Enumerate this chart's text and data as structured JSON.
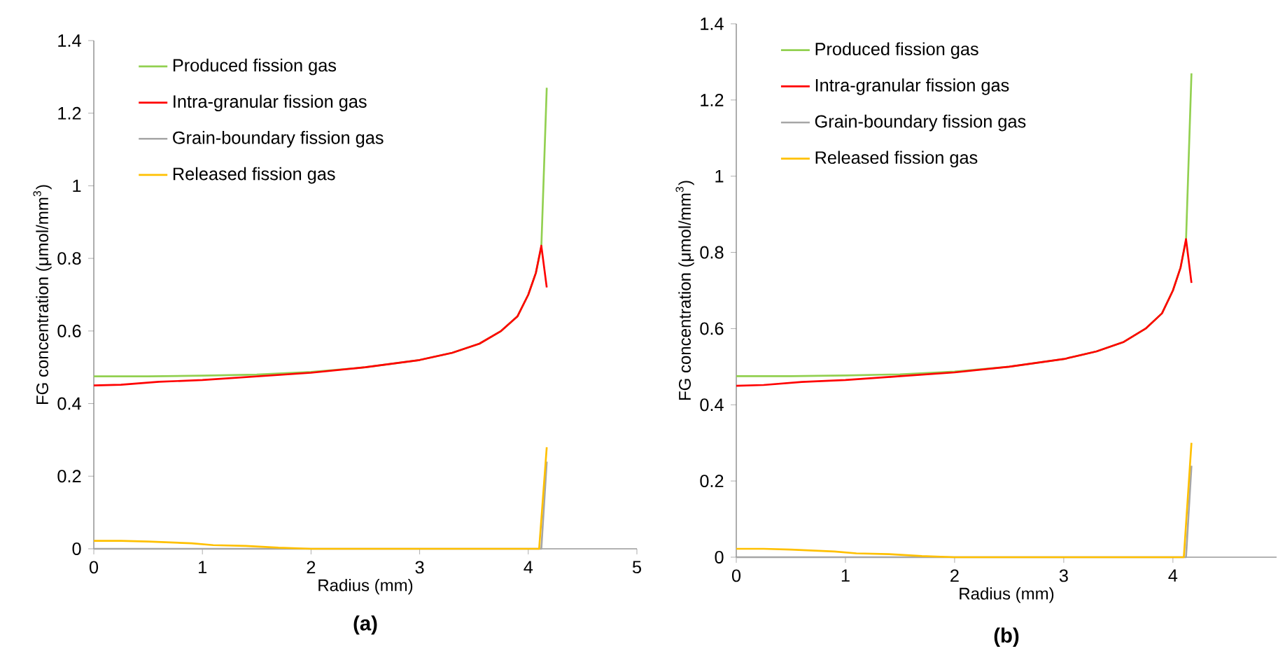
{
  "chart_data": [
    {
      "type": "line",
      "xlabel": "Radius (mm)",
      "ylabel": "FG concentration (μmol/mm$^{3}$)",
      "annotations": [
        "(a)"
      ],
      "legend": "top left",
      "xlim": [
        0,
        5
      ],
      "xticks": [
        0,
        1,
        2,
        3,
        4,
        5
      ],
      "ylim": [
        0,
        1.4
      ],
      "yticks": [
        0,
        0.2,
        0.4,
        0.6,
        0.8,
        1,
        1.2,
        1.4
      ],
      "series": [
        {
          "name": "Produced fission gas",
          "color": "#92d050",
          "x": [
            0,
            0.5,
            1,
            1.5,
            2,
            2.5,
            3,
            3.3,
            3.55,
            3.75,
            3.9,
            4.0,
            4.07,
            4.12,
            4.17
          ],
          "values": [
            0.475,
            0.475,
            0.477,
            0.48,
            0.487,
            0.5,
            0.52,
            0.54,
            0.565,
            0.6,
            0.64,
            0.7,
            0.76,
            0.83,
            1.27
          ]
        },
        {
          "name": "Intra-granular fission gas",
          "color": "#ff0000",
          "x": [
            0,
            0.25,
            0.6,
            1,
            1.5,
            2,
            2.5,
            3,
            3.3,
            3.55,
            3.75,
            3.9,
            4.0,
            4.07,
            4.12,
            4.17
          ],
          "values": [
            0.45,
            0.452,
            0.46,
            0.465,
            0.475,
            0.485,
            0.5,
            0.52,
            0.54,
            0.565,
            0.6,
            0.64,
            0.7,
            0.76,
            0.835,
            0.72
          ]
        },
        {
          "name": "Grain-boundary fission gas",
          "color": "#a6a6a6",
          "x": [
            0,
            1,
            2,
            3,
            4.12,
            4.17
          ],
          "values": [
            0,
            0,
            0,
            0,
            0,
            0.24
          ]
        },
        {
          "name": "Released fission gas",
          "color": "#ffc000",
          "x": [
            0,
            0.25,
            0.5,
            0.9,
            1.1,
            1.4,
            1.7,
            2,
            3,
            4.1,
            4.17
          ],
          "values": [
            0.022,
            0.022,
            0.02,
            0.015,
            0.01,
            0.008,
            0.003,
            0,
            0,
            0,
            0.28
          ]
        }
      ]
    },
    {
      "type": "line",
      "xlabel": "Radius (mm)",
      "ylabel": "FG concentration (μmol/mm$^{3}$)",
      "annotations": [
        "(b)"
      ],
      "legend": "top left",
      "xlim": [
        0,
        4.95
      ],
      "xticks": [
        0,
        1,
        2,
        3,
        4
      ],
      "ylim": [
        0,
        1.4
      ],
      "yticks": [
        0,
        0.2,
        0.4,
        0.6,
        0.8,
        1,
        1.2,
        1.4
      ],
      "series": [
        {
          "name": "Produced fission gas",
          "color": "#92d050",
          "x": [
            0,
            0.5,
            1,
            1.5,
            2,
            2.5,
            3,
            3.3,
            3.55,
            3.75,
            3.9,
            4.0,
            4.07,
            4.12,
            4.17
          ],
          "values": [
            0.475,
            0.475,
            0.477,
            0.48,
            0.487,
            0.5,
            0.52,
            0.54,
            0.565,
            0.6,
            0.64,
            0.7,
            0.76,
            0.83,
            1.27
          ]
        },
        {
          "name": "Intra-granular fission gas",
          "color": "#ff0000",
          "x": [
            0,
            0.25,
            0.6,
            1,
            1.5,
            2,
            2.5,
            3,
            3.3,
            3.55,
            3.75,
            3.9,
            4.0,
            4.07,
            4.12,
            4.17
          ],
          "values": [
            0.45,
            0.452,
            0.46,
            0.465,
            0.475,
            0.485,
            0.5,
            0.52,
            0.54,
            0.565,
            0.6,
            0.64,
            0.7,
            0.76,
            0.835,
            0.72
          ]
        },
        {
          "name": "Grain-boundary fission gas",
          "color": "#a6a6a6",
          "x": [
            0,
            1,
            2,
            3,
            4.12,
            4.17
          ],
          "values": [
            0,
            0,
            0,
            0,
            0,
            0.24
          ]
        },
        {
          "name": "Released fission gas",
          "color": "#ffc000",
          "x": [
            0,
            0.25,
            0.5,
            0.9,
            1.1,
            1.4,
            1.7,
            2,
            3,
            4.1,
            4.17
          ],
          "values": [
            0.022,
            0.022,
            0.02,
            0.015,
            0.01,
            0.008,
            0.003,
            0,
            0,
            0,
            0.3
          ]
        }
      ]
    }
  ]
}
